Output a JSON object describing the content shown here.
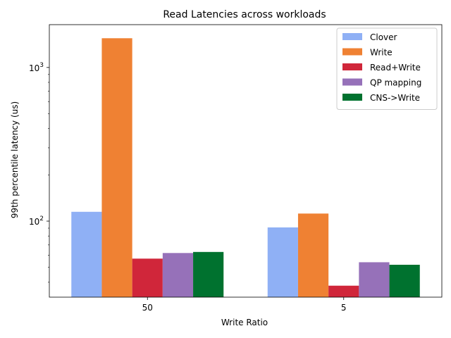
{
  "chart_data": {
    "type": "bar",
    "title": "Read Latencies across workloads",
    "xlabel": "Write Ratio",
    "ylabel": "99th percentile latency (us)",
    "yscale": "log",
    "ylim": [
      32,
      1900
    ],
    "yticks": [
      {
        "value": 100,
        "base": "10",
        "exp": "2"
      },
      {
        "value": 1000,
        "base": "10",
        "exp": "3"
      }
    ],
    "categories": [
      "50",
      "5"
    ],
    "series": [
      {
        "name": "Clover",
        "color": "#8fb0f5",
        "values": [
          115,
          91
        ]
      },
      {
        "name": "Write",
        "color": "#ef8133",
        "values": [
          1550,
          112
        ]
      },
      {
        "name": "Read+Write",
        "color": "#d0263a",
        "values": [
          57,
          38
        ]
      },
      {
        "name": "QP mapping",
        "color": "#9671b9",
        "values": [
          62,
          54
        ]
      },
      {
        "name": "CNS->Write",
        "color": "#00722f",
        "values": [
          63,
          52
        ]
      }
    ],
    "legend": "top-right"
  }
}
